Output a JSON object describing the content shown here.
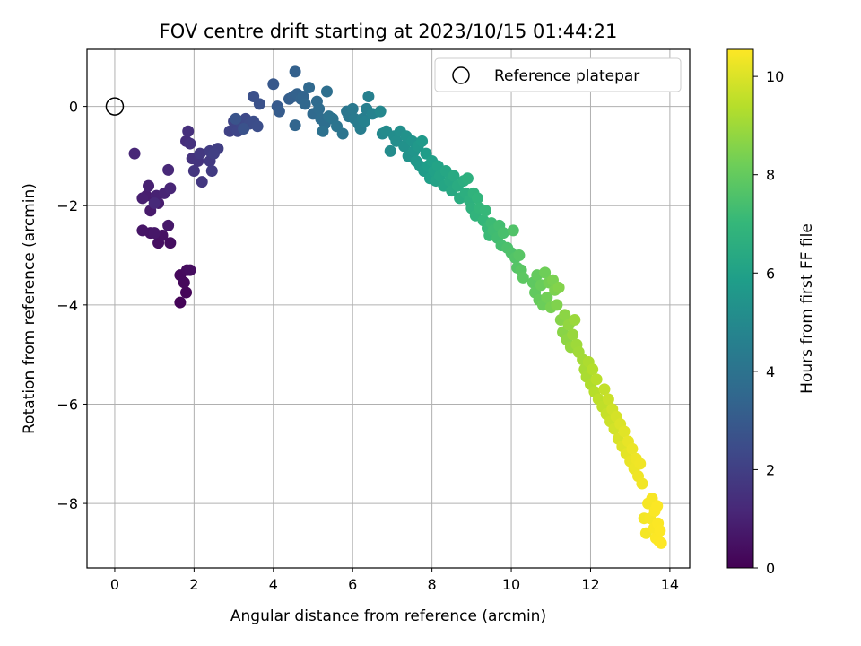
{
  "chart_data": {
    "type": "scatter",
    "title": "FOV centre drift starting at 2023/10/15 01:44:21",
    "xlabel": "Angular distance from reference (arcmin)",
    "ylabel": "Rotation from reference (arcmin)",
    "xlim": [
      -0.7,
      14.5
    ],
    "ylim": [
      -9.3,
      1.15
    ],
    "x_ticks": [
      0,
      2,
      4,
      6,
      8,
      10,
      12,
      14
    ],
    "y_ticks": [
      0,
      -2,
      -4,
      -6,
      -8
    ],
    "grid": true,
    "legend": {
      "placement": "top-right",
      "entries": [
        "Reference platepar"
      ]
    },
    "reference_point": {
      "name": "Reference platepar",
      "x": 0,
      "y": 0
    },
    "colorbar": {
      "label": "Hours from first FF file",
      "range": [
        0,
        10.55
      ],
      "ticks": [
        0,
        2,
        4,
        6,
        8,
        10
      ],
      "colormap": "viridis"
    },
    "points": [
      [
        1.65,
        -3.95,
        0.1
      ],
      [
        1.8,
        -3.75,
        0.15
      ],
      [
        1.75,
        -3.55,
        0.2
      ],
      [
        1.65,
        -3.4,
        0.25
      ],
      [
        1.82,
        -3.3,
        0.3
      ],
      [
        1.9,
        -3.3,
        0.35
      ],
      [
        1.4,
        -2.75,
        0.4
      ],
      [
        1.1,
        -2.75,
        0.45
      ],
      [
        1.2,
        -2.6,
        0.5
      ],
      [
        0.9,
        -2.55,
        0.55
      ],
      [
        0.7,
        -2.5,
        0.6
      ],
      [
        1.0,
        -2.55,
        0.65
      ],
      [
        1.35,
        -2.4,
        0.7
      ],
      [
        0.9,
        -2.1,
        0.75
      ],
      [
        1.1,
        -1.95,
        0.8
      ],
      [
        0.8,
        -1.8,
        0.85
      ],
      [
        0.7,
        -1.85,
        0.9
      ],
      [
        0.85,
        -1.6,
        0.95
      ],
      [
        1.05,
        -1.8,
        1.0
      ],
      [
        1.25,
        -1.75,
        1.05
      ],
      [
        1.4,
        -1.65,
        1.1
      ],
      [
        0.5,
        -0.95,
        1.15
      ],
      [
        1.35,
        -1.28,
        1.2
      ],
      [
        1.0,
        -1.95,
        1.25
      ],
      [
        1.8,
        -0.7,
        1.4
      ],
      [
        1.85,
        -0.5,
        1.45
      ],
      [
        1.9,
        -0.75,
        1.5
      ],
      [
        1.95,
        -1.05,
        1.55
      ],
      [
        2.1,
        -1.1,
        1.6
      ],
      [
        2.0,
        -1.3,
        1.65
      ],
      [
        2.2,
        -1.52,
        1.7
      ],
      [
        2.15,
        -0.95,
        1.75
      ],
      [
        2.4,
        -1.1,
        1.8
      ],
      [
        2.45,
        -1.3,
        1.85
      ],
      [
        2.4,
        -0.9,
        1.9
      ],
      [
        2.6,
        -0.85,
        1.95
      ],
      [
        2.5,
        -0.95,
        2.0
      ],
      [
        2.9,
        -0.5,
        2.1
      ],
      [
        3.0,
        -0.3,
        2.15
      ],
      [
        3.05,
        -0.45,
        2.2
      ],
      [
        3.1,
        -0.5,
        2.25
      ],
      [
        3.2,
        -0.35,
        2.3
      ],
      [
        3.3,
        -0.25,
        2.35
      ],
      [
        3.35,
        -0.3,
        2.4
      ],
      [
        3.4,
        -0.35,
        2.45
      ],
      [
        3.5,
        -0.3,
        2.5
      ],
      [
        3.6,
        -0.4,
        2.55
      ],
      [
        3.5,
        0.2,
        2.6
      ],
      [
        3.65,
        0.05,
        2.65
      ],
      [
        3.25,
        -0.45,
        2.7
      ],
      [
        3.05,
        -0.25,
        2.75
      ],
      [
        4.0,
        0.45,
        2.9
      ],
      [
        4.1,
        0.0,
        3.0
      ],
      [
        4.15,
        -0.1,
        3.05
      ],
      [
        4.4,
        0.15,
        3.15
      ],
      [
        4.5,
        0.2,
        3.2
      ],
      [
        4.55,
        0.7,
        3.25
      ],
      [
        4.6,
        0.25,
        3.3
      ],
      [
        4.7,
        0.15,
        3.35
      ],
      [
        4.75,
        0.2,
        3.4
      ],
      [
        4.55,
        -0.38,
        3.45
      ],
      [
        4.8,
        0.05,
        3.5
      ],
      [
        4.9,
        0.38,
        3.55
      ],
      [
        5.0,
        -0.15,
        3.6
      ],
      [
        5.1,
        0.1,
        3.65
      ],
      [
        5.15,
        -0.05,
        3.7
      ],
      [
        5.2,
        -0.25,
        3.75
      ],
      [
        5.3,
        -0.35,
        3.8
      ],
      [
        5.35,
        0.3,
        3.85
      ],
      [
        5.25,
        -0.5,
        3.9
      ],
      [
        5.4,
        -0.2,
        3.95
      ],
      [
        5.5,
        -0.25,
        4.0
      ],
      [
        5.6,
        -0.4,
        4.05
      ],
      [
        5.75,
        -0.55,
        4.1
      ],
      [
        5.85,
        -0.1,
        4.15
      ],
      [
        5.9,
        -0.2,
        4.2
      ],
      [
        6.0,
        -0.05,
        4.3
      ],
      [
        6.05,
        -0.25,
        4.35
      ],
      [
        6.15,
        -0.35,
        4.4
      ],
      [
        6.2,
        -0.45,
        4.45
      ],
      [
        6.25,
        -0.25,
        4.5
      ],
      [
        6.35,
        -0.05,
        4.55
      ],
      [
        6.4,
        0.2,
        4.6
      ],
      [
        6.3,
        -0.3,
        4.65
      ],
      [
        6.5,
        -0.15,
        4.7
      ],
      [
        6.7,
        -0.1,
        4.9
      ],
      [
        6.75,
        -0.55,
        5.0
      ],
      [
        6.85,
        -0.5,
        5.05
      ],
      [
        6.95,
        -0.9,
        5.1
      ],
      [
        7.05,
        -0.6,
        5.15
      ],
      [
        7.1,
        -0.7,
        5.2
      ],
      [
        7.2,
        -0.5,
        5.25
      ],
      [
        7.3,
        -0.8,
        5.3
      ],
      [
        7.35,
        -0.6,
        5.35
      ],
      [
        7.4,
        -1.0,
        5.4
      ],
      [
        7.5,
        -0.7,
        5.45
      ],
      [
        7.55,
        -0.9,
        5.5
      ],
      [
        7.6,
        -1.1,
        5.55
      ],
      [
        7.65,
        -0.8,
        5.6
      ],
      [
        7.7,
        -1.2,
        5.65
      ],
      [
        7.75,
        -0.7,
        5.7
      ],
      [
        7.8,
        -1.3,
        5.75
      ],
      [
        7.85,
        -0.95,
        5.8
      ],
      [
        7.9,
        -1.2,
        5.85
      ],
      [
        7.95,
        -1.45,
        5.9
      ],
      [
        8.0,
        -1.1,
        5.95
      ],
      [
        8.05,
        -1.3,
        6.0
      ],
      [
        8.1,
        -1.5,
        6.05
      ],
      [
        8.15,
        -1.2,
        6.1
      ],
      [
        8.2,
        -1.4,
        6.15
      ],
      [
        8.3,
        -1.6,
        6.2
      ],
      [
        8.35,
        -1.3,
        6.25
      ],
      [
        8.45,
        -1.5,
        6.3
      ],
      [
        8.5,
        -1.7,
        6.35
      ],
      [
        8.55,
        -1.4,
        6.4
      ],
      [
        8.65,
        -1.6,
        6.45
      ],
      [
        8.7,
        -1.85,
        6.5
      ],
      [
        8.8,
        -1.5,
        6.55
      ],
      [
        8.85,
        -1.75,
        6.6
      ],
      [
        8.9,
        -1.45,
        6.65
      ],
      [
        8.95,
        -1.9,
        6.7
      ],
      [
        9.0,
        -2.05,
        6.75
      ],
      [
        9.05,
        -1.75,
        6.8
      ],
      [
        9.1,
        -2.2,
        6.85
      ],
      [
        9.15,
        -1.85,
        6.9
      ],
      [
        9.2,
        -2.05,
        6.95
      ],
      [
        9.3,
        -2.3,
        7.0
      ],
      [
        9.35,
        -2.1,
        7.05
      ],
      [
        9.4,
        -2.45,
        7.1
      ],
      [
        9.45,
        -2.6,
        7.15
      ],
      [
        9.5,
        -2.35,
        7.2
      ],
      [
        9.55,
        -2.5,
        7.25
      ],
      [
        9.65,
        -2.65,
        7.3
      ],
      [
        9.7,
        -2.4,
        7.35
      ],
      [
        9.75,
        -2.8,
        7.4
      ],
      [
        9.8,
        -2.55,
        7.45
      ],
      [
        9.9,
        -2.85,
        7.5
      ],
      [
        10.0,
        -2.95,
        7.55
      ],
      [
        10.05,
        -2.5,
        7.6
      ],
      [
        10.1,
        -3.05,
        7.65
      ],
      [
        10.15,
        -3.25,
        7.7
      ],
      [
        10.2,
        -3.0,
        7.75
      ],
      [
        10.25,
        -3.3,
        7.8
      ],
      [
        10.3,
        -3.45,
        7.85
      ],
      [
        10.55,
        -3.55,
        7.9
      ],
      [
        10.6,
        -3.75,
        7.95
      ],
      [
        10.65,
        -3.4,
        8.0
      ],
      [
        10.7,
        -3.9,
        8.05
      ],
      [
        10.75,
        -3.6,
        8.1
      ],
      [
        10.8,
        -4.0,
        8.15
      ],
      [
        10.85,
        -3.35,
        8.2
      ],
      [
        10.9,
        -3.85,
        8.25
      ],
      [
        10.95,
        -3.55,
        8.3
      ],
      [
        11.0,
        -4.05,
        8.35
      ],
      [
        11.05,
        -3.5,
        8.4
      ],
      [
        11.1,
        -3.7,
        8.45
      ],
      [
        11.15,
        -4.0,
        8.5
      ],
      [
        11.2,
        -3.65,
        8.55
      ],
      [
        11.25,
        -4.3,
        8.6
      ],
      [
        11.3,
        -4.55,
        8.65
      ],
      [
        11.35,
        -4.2,
        8.7
      ],
      [
        11.4,
        -4.7,
        8.75
      ],
      [
        11.45,
        -4.4,
        8.8
      ],
      [
        11.5,
        -4.85,
        8.85
      ],
      [
        11.55,
        -4.6,
        8.9
      ],
      [
        11.6,
        -4.3,
        8.95
      ],
      [
        11.65,
        -4.8,
        9.0
      ],
      [
        11.7,
        -4.95,
        9.05
      ],
      [
        11.8,
        -5.1,
        9.1
      ],
      [
        11.85,
        -5.3,
        9.15
      ],
      [
        11.9,
        -5.45,
        9.2
      ],
      [
        11.95,
        -5.15,
        9.25
      ],
      [
        12.0,
        -5.6,
        9.3
      ],
      [
        12.05,
        -5.3,
        9.35
      ],
      [
        12.1,
        -5.75,
        9.4
      ],
      [
        12.15,
        -5.5,
        9.45
      ],
      [
        12.2,
        -5.9,
        9.5
      ],
      [
        12.3,
        -6.05,
        9.55
      ],
      [
        12.35,
        -5.7,
        9.6
      ],
      [
        12.4,
        -6.2,
        9.65
      ],
      [
        12.45,
        -5.9,
        9.7
      ],
      [
        12.5,
        -6.35,
        9.75
      ],
      [
        12.55,
        -6.1,
        9.8
      ],
      [
        12.6,
        -6.5,
        9.85
      ],
      [
        12.65,
        -6.25,
        9.9
      ],
      [
        12.7,
        -6.7,
        9.95
      ],
      [
        12.75,
        -6.4,
        10.0
      ],
      [
        12.8,
        -6.85,
        10.05
      ],
      [
        12.85,
        -6.55,
        10.1
      ],
      [
        12.9,
        -7.0,
        10.15
      ],
      [
        12.95,
        -6.75,
        10.2
      ],
      [
        13.0,
        -7.15,
        10.22
      ],
      [
        13.05,
        -6.9,
        10.25
      ],
      [
        13.1,
        -7.3,
        10.28
      ],
      [
        13.15,
        -7.1,
        10.3
      ],
      [
        13.2,
        -7.45,
        10.32
      ],
      [
        13.25,
        -7.2,
        10.34
      ],
      [
        13.3,
        -7.6,
        10.36
      ],
      [
        13.35,
        -8.3,
        10.38
      ],
      [
        13.4,
        -8.6,
        10.4
      ],
      [
        13.45,
        -8.0,
        10.42
      ],
      [
        13.5,
        -8.3,
        10.44
      ],
      [
        13.55,
        -7.9,
        10.46
      ],
      [
        13.6,
        -8.5,
        10.48
      ],
      [
        13.62,
        -8.15,
        10.5
      ],
      [
        13.65,
        -8.7,
        10.51
      ],
      [
        13.7,
        -8.4,
        10.52
      ],
      [
        13.72,
        -8.75,
        10.53
      ],
      [
        13.75,
        -8.55,
        10.54
      ],
      [
        13.78,
        -8.8,
        10.55
      ],
      [
        13.68,
        -8.05,
        10.52
      ]
    ]
  },
  "colors": {
    "grid": "#b0b0b0",
    "viridis": [
      "#440154",
      "#482878",
      "#3e4989",
      "#31688e",
      "#26828e",
      "#1f9e89",
      "#35b779",
      "#6ece58",
      "#b5de2b",
      "#fde725"
    ]
  }
}
